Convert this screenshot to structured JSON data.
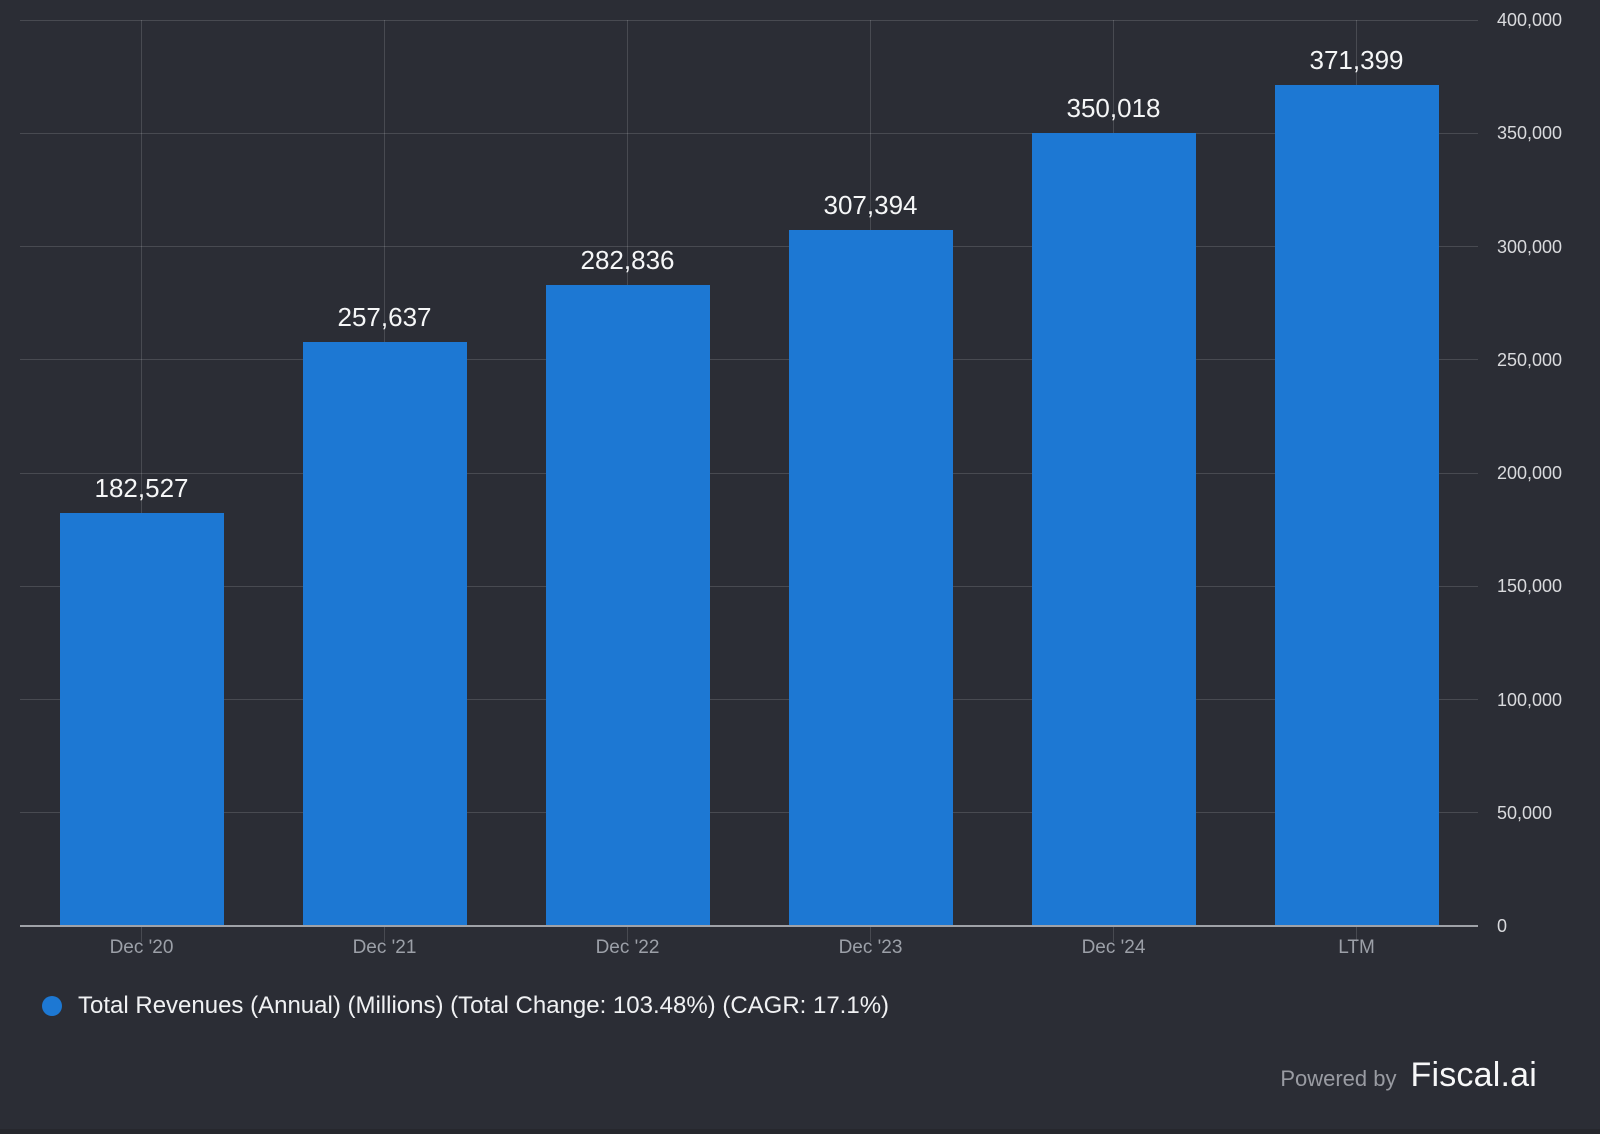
{
  "colors": {
    "background": "#2b2d35",
    "bar": "#1d78d3",
    "grid": "rgba(255,255,255,0.14)",
    "axis": "#9fa2a8",
    "value_label": "#f5f6f7",
    "x_label": "#9ca0a8",
    "y_label": "#d9dadd",
    "legend_text": "#f0f1f3",
    "powered_by_text": "#999ba2",
    "brand_text": "#f7f7f8"
  },
  "chart_data": {
    "type": "bar",
    "categories": [
      "Dec '20",
      "Dec '21",
      "Dec '22",
      "Dec '23",
      "Dec '24",
      "LTM"
    ],
    "values": [
      182527,
      257637,
      282836,
      307394,
      350018,
      371399
    ],
    "value_labels": [
      "182,527",
      "257,637",
      "282,836",
      "307,394",
      "350,018",
      "371,399"
    ],
    "series_name": "Total Revenues (Annual) (Millions) (Total Change: 103.48%) (CAGR: 17.1%)",
    "title": "",
    "xlabel": "",
    "ylabel": "",
    "ylim": [
      0,
      400000
    ],
    "y_tick_interval": 50000,
    "y_tick_labels": [
      "0",
      "50,000",
      "100,000",
      "150,000",
      "200,000",
      "250,000",
      "300,000",
      "350,000",
      "400,000"
    ],
    "grid": true,
    "legend_position": "bottom-left",
    "bar_color": "#1d78d3"
  },
  "legend": {
    "label": "Total Revenues (Annual) (Millions) (Total Change: 103.48%) (CAGR: 17.1%)",
    "marker_color": "#1d78d3"
  },
  "footer": {
    "powered_by": "Powered by",
    "brand": "Fiscal.ai"
  }
}
